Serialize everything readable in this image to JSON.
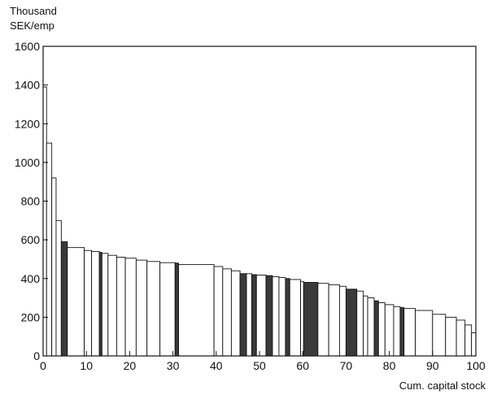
{
  "chart_data": {
    "type": "bar",
    "title": "",
    "ylabel_lines": [
      "Thousand",
      "SEK/emp"
    ],
    "xlabel": "Cum. capital stock",
    "xlim": [
      0,
      100
    ],
    "ylim": [
      0,
      1600
    ],
    "xticks": [
      0,
      10,
      20,
      30,
      40,
      50,
      60,
      70,
      80,
      90,
      100
    ],
    "yticks": [
      0,
      200,
      400,
      600,
      800,
      1000,
      1200,
      1400,
      1600
    ],
    "grid": false,
    "legend": "none",
    "colors": {
      "open": "#ffffff",
      "highlight": "#3a3a3a",
      "stroke": "#111111"
    },
    "note": "Variable-width bars: each plant is a bar spanning [x0, x1] of cumulative capital stock (%) with height = value (thousand SEK per employee); highlighted plants are drawn dark.",
    "bars": [
      {
        "x0": 0.0,
        "x1": 0.8,
        "value": 1390,
        "highlight": false
      },
      {
        "x0": 0.8,
        "x1": 2.0,
        "value": 1100,
        "highlight": false
      },
      {
        "x0": 2.0,
        "x1": 3.0,
        "value": 920,
        "highlight": false
      },
      {
        "x0": 3.0,
        "x1": 4.2,
        "value": 700,
        "highlight": false
      },
      {
        "x0": 4.2,
        "x1": 5.6,
        "value": 590,
        "highlight": true
      },
      {
        "x0": 5.6,
        "x1": 9.5,
        "value": 560,
        "highlight": false
      },
      {
        "x0": 9.5,
        "x1": 11.2,
        "value": 545,
        "highlight": false
      },
      {
        "x0": 11.2,
        "x1": 13.0,
        "value": 540,
        "highlight": false
      },
      {
        "x0": 13.0,
        "x1": 13.6,
        "value": 535,
        "highlight": true
      },
      {
        "x0": 13.6,
        "x1": 15.0,
        "value": 530,
        "highlight": false
      },
      {
        "x0": 15.0,
        "x1": 17.0,
        "value": 520,
        "highlight": false
      },
      {
        "x0": 17.0,
        "x1": 19.0,
        "value": 510,
        "highlight": false
      },
      {
        "x0": 19.0,
        "x1": 21.5,
        "value": 505,
        "highlight": false
      },
      {
        "x0": 21.5,
        "x1": 24.0,
        "value": 495,
        "highlight": false
      },
      {
        "x0": 24.0,
        "x1": 27.0,
        "value": 488,
        "highlight": false
      },
      {
        "x0": 27.0,
        "x1": 30.5,
        "value": 482,
        "highlight": false
      },
      {
        "x0": 30.5,
        "x1": 31.3,
        "value": 480,
        "highlight": true
      },
      {
        "x0": 31.3,
        "x1": 39.5,
        "value": 472,
        "highlight": false
      },
      {
        "x0": 39.5,
        "x1": 41.5,
        "value": 462,
        "highlight": false
      },
      {
        "x0": 41.5,
        "x1": 43.5,
        "value": 450,
        "highlight": false
      },
      {
        "x0": 43.5,
        "x1": 45.5,
        "value": 440,
        "highlight": false
      },
      {
        "x0": 45.5,
        "x1": 47.0,
        "value": 425,
        "highlight": true
      },
      {
        "x0": 47.0,
        "x1": 48.2,
        "value": 425,
        "highlight": false
      },
      {
        "x0": 48.2,
        "x1": 49.3,
        "value": 420,
        "highlight": true
      },
      {
        "x0": 49.3,
        "x1": 51.5,
        "value": 418,
        "highlight": false
      },
      {
        "x0": 51.5,
        "x1": 53.0,
        "value": 415,
        "highlight": true
      },
      {
        "x0": 53.0,
        "x1": 54.5,
        "value": 410,
        "highlight": false
      },
      {
        "x0": 54.5,
        "x1": 56.0,
        "value": 405,
        "highlight": false
      },
      {
        "x0": 56.0,
        "x1": 57.0,
        "value": 400,
        "highlight": true
      },
      {
        "x0": 57.0,
        "x1": 59.5,
        "value": 395,
        "highlight": false
      },
      {
        "x0": 59.5,
        "x1": 60.2,
        "value": 385,
        "highlight": false
      },
      {
        "x0": 60.2,
        "x1": 63.5,
        "value": 380,
        "highlight": true
      },
      {
        "x0": 63.5,
        "x1": 66.0,
        "value": 375,
        "highlight": false
      },
      {
        "x0": 66.0,
        "x1": 68.5,
        "value": 368,
        "highlight": false
      },
      {
        "x0": 68.5,
        "x1": 70.0,
        "value": 360,
        "highlight": false
      },
      {
        "x0": 70.0,
        "x1": 72.5,
        "value": 345,
        "highlight": true
      },
      {
        "x0": 72.5,
        "x1": 74.0,
        "value": 335,
        "highlight": false
      },
      {
        "x0": 74.0,
        "x1": 75.0,
        "value": 310,
        "highlight": false
      },
      {
        "x0": 75.0,
        "x1": 76.5,
        "value": 300,
        "highlight": false
      },
      {
        "x0": 76.5,
        "x1": 77.5,
        "value": 285,
        "highlight": true
      },
      {
        "x0": 77.5,
        "x1": 79.0,
        "value": 275,
        "highlight": false
      },
      {
        "x0": 79.0,
        "x1": 81.0,
        "value": 265,
        "highlight": false
      },
      {
        "x0": 81.0,
        "x1": 82.5,
        "value": 255,
        "highlight": false
      },
      {
        "x0": 82.5,
        "x1": 83.4,
        "value": 250,
        "highlight": true
      },
      {
        "x0": 83.4,
        "x1": 86.0,
        "value": 245,
        "highlight": false
      },
      {
        "x0": 86.0,
        "x1": 90.0,
        "value": 235,
        "highlight": false
      },
      {
        "x0": 90.0,
        "x1": 93.0,
        "value": 215,
        "highlight": false
      },
      {
        "x0": 93.0,
        "x1": 95.5,
        "value": 200,
        "highlight": false
      },
      {
        "x0": 95.5,
        "x1": 97.5,
        "value": 185,
        "highlight": false
      },
      {
        "x0": 97.5,
        "x1": 99.0,
        "value": 160,
        "highlight": false
      },
      {
        "x0": 99.0,
        "x1": 100.0,
        "value": 120,
        "highlight": false
      }
    ]
  }
}
